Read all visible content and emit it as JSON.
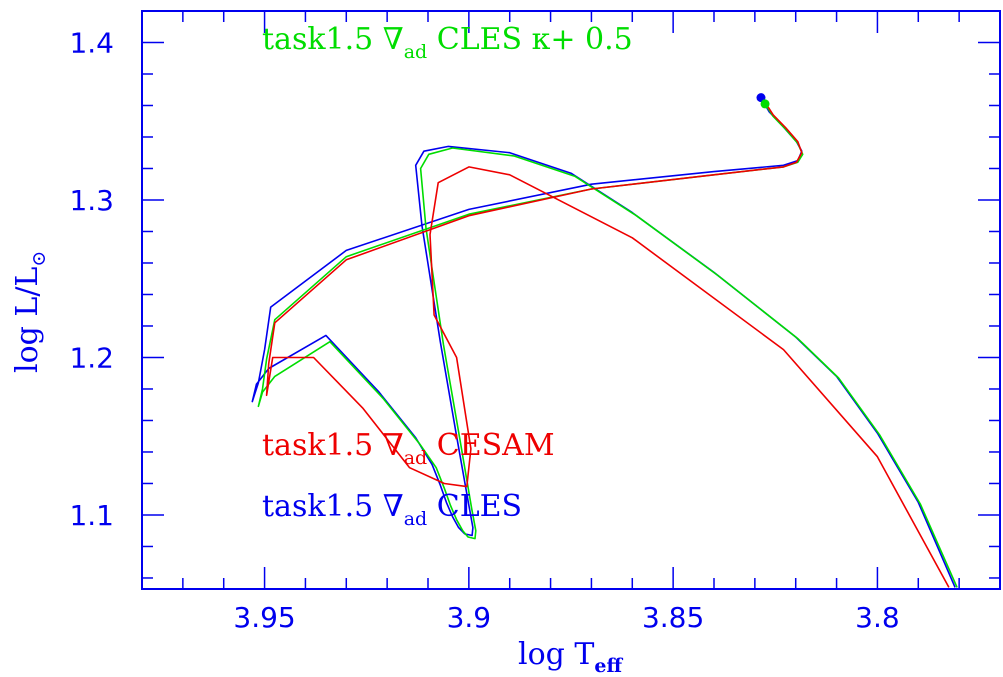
{
  "chart_data": {
    "type": "line",
    "xlabel": "log T",
    "xlabel_sub": "eff",
    "ylabel": "log L/L",
    "ylabel_sub": "⊙",
    "xlim": [
      3.98,
      3.77
    ],
    "ylim": [
      1.053,
      1.42
    ],
    "x_inverted": true,
    "x_major_ticks": [
      3.95,
      3.9,
      3.85,
      3.8
    ],
    "x_tick_labels": [
      "3.95",
      "3.9",
      "3.85",
      "3.8"
    ],
    "y_major_ticks": [
      1.1,
      1.2,
      1.3,
      1.4
    ],
    "y_tick_labels": [
      "1.1",
      "1.2",
      "1.3",
      "1.4"
    ],
    "frame_color": "#0000ee",
    "grid": false,
    "legend_placement": "inside (top and lower-left)",
    "legend": [
      {
        "prefix": "task1.5 ∇",
        "sub": "ad",
        "suffix": " CLES κ+ 0.5",
        "color": "#00dd00"
      },
      {
        "prefix": "task1.5 ∇",
        "sub": "ad",
        "suffix": " CESAM",
        "color": "#ee0000"
      },
      {
        "prefix": "task1.5 ∇",
        "sub": "ad",
        "suffix": " CLES",
        "color": "#0000ee"
      }
    ],
    "series": [
      {
        "color": "#0000ee",
        "start_marker": true,
        "x": [
          3.8285,
          3.8265,
          3.8232,
          3.8198,
          3.8185,
          3.8195,
          3.823,
          3.84,
          3.87,
          3.9,
          3.93,
          3.9485,
          3.95,
          3.9515,
          3.953,
          3.952,
          3.949,
          3.935,
          3.922,
          3.913,
          3.909,
          3.907,
          3.9055,
          3.904,
          3.9025,
          3.901,
          3.8992,
          3.899,
          3.9,
          3.903,
          3.907,
          3.9115,
          3.913,
          3.911,
          3.905,
          3.89,
          3.875,
          3.86,
          3.84,
          3.82,
          3.81,
          3.8,
          3.79,
          3.781
        ],
        "y": [
          1.365,
          1.356,
          1.347,
          1.337,
          1.331,
          1.325,
          1.322,
          1.318,
          1.31,
          1.294,
          1.268,
          1.232,
          1.205,
          1.184,
          1.172,
          1.183,
          1.193,
          1.214,
          1.178,
          1.149,
          1.132,
          1.119,
          1.108,
          1.099,
          1.092,
          1.088,
          1.087,
          1.092,
          1.106,
          1.15,
          1.21,
          1.284,
          1.322,
          1.331,
          1.334,
          1.33,
          1.317,
          1.292,
          1.254,
          1.213,
          1.188,
          1.152,
          1.108,
          1.054
        ]
      },
      {
        "color": "#00dd00",
        "start_marker": true,
        "x": [
          3.8275,
          3.8255,
          3.8225,
          3.8195,
          3.8183,
          3.8195,
          3.823,
          3.84,
          3.87,
          3.9,
          3.93,
          3.9475,
          3.9495,
          3.9505,
          3.9515,
          3.9505,
          3.9475,
          3.934,
          3.921,
          3.912,
          3.908,
          3.906,
          3.9045,
          3.903,
          3.9015,
          3.9002,
          3.8985,
          3.8983,
          3.8993,
          3.9022,
          3.9062,
          3.9105,
          3.9118,
          3.9098,
          3.904,
          3.889,
          3.874,
          3.859,
          3.839,
          3.8195,
          3.8095,
          3.7995,
          3.7895,
          3.7805
        ],
        "y": [
          1.361,
          1.353,
          1.345,
          1.336,
          1.329,
          1.324,
          1.321,
          1.316,
          1.307,
          1.291,
          1.264,
          1.224,
          1.199,
          1.18,
          1.169,
          1.178,
          1.188,
          1.21,
          1.174,
          1.145,
          1.13,
          1.117,
          1.106,
          1.097,
          1.09,
          1.086,
          1.085,
          1.09,
          1.104,
          1.148,
          1.208,
          1.282,
          1.32,
          1.329,
          1.333,
          1.328,
          1.315,
          1.29,
          1.252,
          1.212,
          1.187,
          1.151,
          1.107,
          1.054
        ]
      },
      {
        "color": "#ee0000",
        "start_marker": false,
        "x": [
          3.8275,
          3.8255,
          3.8225,
          3.8195,
          3.8185,
          3.8198,
          3.823,
          3.84,
          3.87,
          3.9,
          3.93,
          3.9475,
          3.949,
          3.9495,
          3.948,
          3.938,
          3.926,
          3.9145,
          3.906,
          3.9005,
          3.8995,
          3.903,
          3.9085,
          3.9095,
          3.9075,
          3.9,
          3.89,
          3.86,
          3.823,
          3.8,
          3.7825
        ],
        "y": [
          1.362,
          1.354,
          1.346,
          1.337,
          1.33,
          1.324,
          1.321,
          1.316,
          1.307,
          1.29,
          1.262,
          1.222,
          1.196,
          1.176,
          1.2,
          1.2,
          1.168,
          1.13,
          1.12,
          1.118,
          1.142,
          1.2,
          1.227,
          1.278,
          1.311,
          1.321,
          1.316,
          1.276,
          1.205,
          1.137,
          1.054
        ]
      }
    ]
  }
}
